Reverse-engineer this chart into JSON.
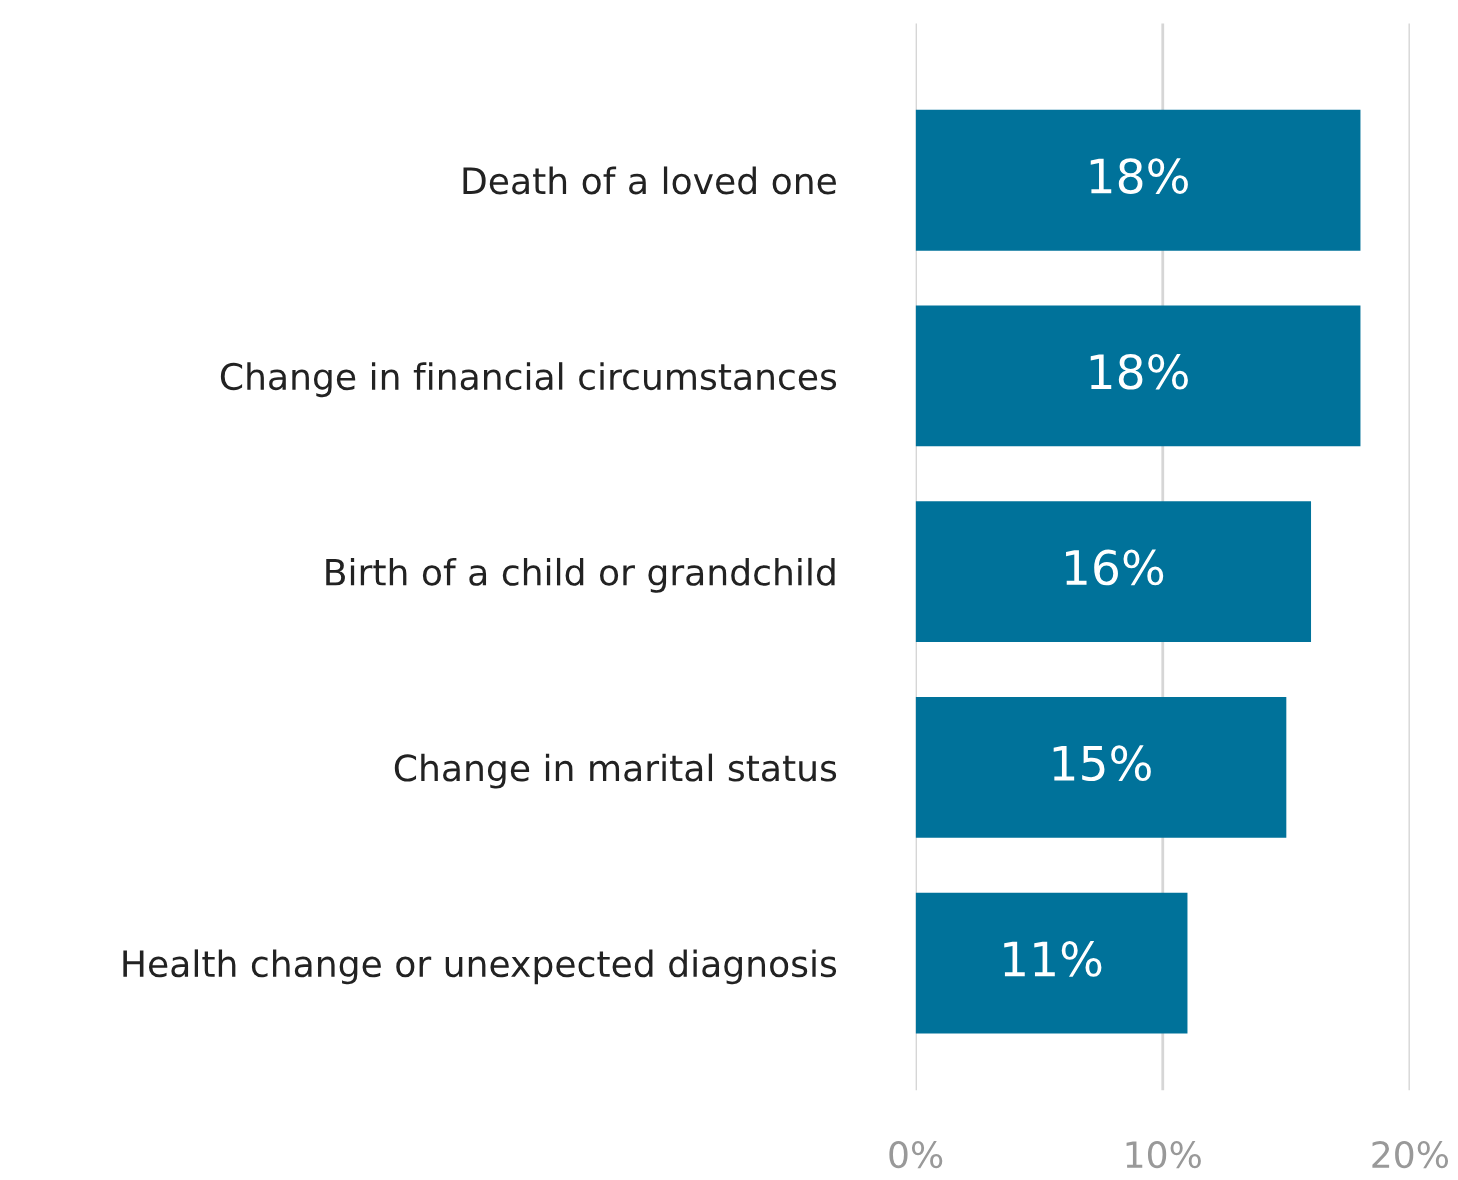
{
  "chart_data": {
    "type": "bar",
    "orientation": "horizontal",
    "categories": [
      "Death of a loved one",
      "Change in financial circumstances",
      "Birth of a child or grandchild",
      "Change in marital status",
      "Health change or unexpected diagnosis"
    ],
    "values": [
      18,
      18,
      16,
      15,
      11
    ],
    "color": "#00729a",
    "xlim": [
      0,
      20
    ],
    "xticks": [
      {
        "value": 0,
        "label": "0%"
      },
      {
        "value": 10,
        "label": "10%"
      },
      {
        "value": 20,
        "label": "20%"
      }
    ],
    "value_labels": [
      "18%",
      "18%",
      "16%",
      "15%",
      "11%"
    ],
    "grid": "x",
    "legend": false
  }
}
